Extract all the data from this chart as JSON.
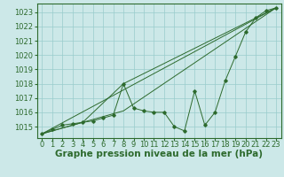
{
  "xlabel": "Graphe pression niveau de la mer (hPa)",
  "background_color": "#cce8e8",
  "grid_color": "#99cccc",
  "line_color": "#2d6a2d",
  "xlim": [
    -0.5,
    23.5
  ],
  "ylim": [
    1014.2,
    1023.6
  ],
  "yticks": [
    1015,
    1016,
    1017,
    1018,
    1019,
    1020,
    1021,
    1022,
    1023
  ],
  "xticks": [
    0,
    1,
    2,
    3,
    4,
    5,
    6,
    7,
    8,
    9,
    10,
    11,
    12,
    13,
    14,
    15,
    16,
    17,
    18,
    19,
    20,
    21,
    22,
    23
  ],
  "series_main": {
    "x": [
      0,
      1,
      2,
      3,
      4,
      5,
      6,
      7,
      8,
      9,
      10,
      11,
      12,
      13,
      14,
      15,
      16,
      17,
      18,
      19,
      20,
      21,
      22,
      23
    ],
    "y": [
      1014.5,
      1014.8,
      1015.1,
      1015.2,
      1015.3,
      1015.4,
      1015.6,
      1015.8,
      1018.0,
      1016.3,
      1016.1,
      1016.0,
      1016.0,
      1015.0,
      1014.7,
      1017.5,
      1015.1,
      1016.0,
      1018.2,
      1019.9,
      1021.6,
      1022.6,
      1023.1,
      1023.3
    ]
  },
  "series_lines": [
    {
      "x": [
        0,
        23
      ],
      "y": [
        1014.5,
        1023.3
      ]
    },
    {
      "x": [
        0,
        4,
        8,
        23
      ],
      "y": [
        1014.5,
        1015.3,
        1018.0,
        1023.3
      ]
    },
    {
      "x": [
        0,
        4,
        8,
        23
      ],
      "y": [
        1014.5,
        1015.3,
        1016.1,
        1023.3
      ]
    }
  ],
  "xlabel_fontsize": 7.5,
  "tick_fontsize": 6,
  "xlabel_fontweight": "bold"
}
